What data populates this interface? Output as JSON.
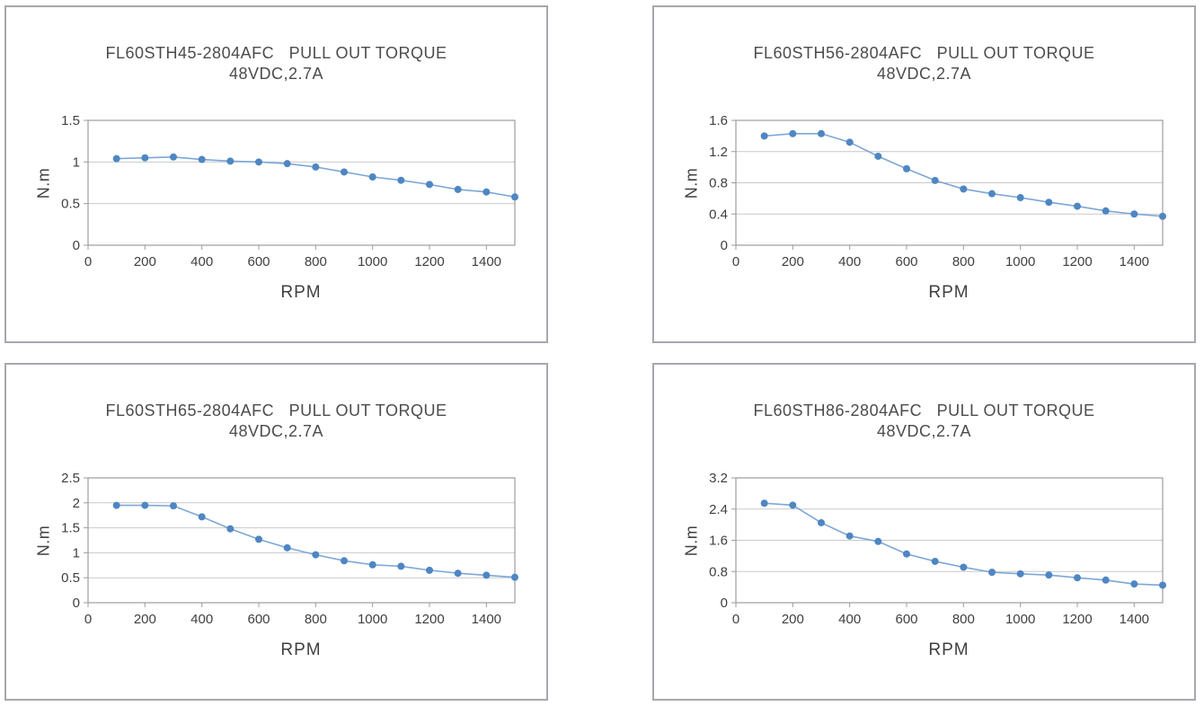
{
  "style": {
    "panel_border_color": "#a7a7ad",
    "grid_color": "#c9c9c9",
    "axis_color": "#9c9c9c",
    "tick_text_color": "#3f3f3f",
    "title_color": "#4c4c4c",
    "marker_color": "#4f86c2",
    "line_color": "#7ca7d6"
  },
  "chart_data": [
    {
      "type": "line",
      "title": "FL60STH45-2804AFC   PULL OUT TORQUE",
      "subtitle": "48VDC,2.7A",
      "ylabel": "N.m",
      "xlabel": "RPM",
      "x": [
        100,
        200,
        300,
        400,
        500,
        600,
        700,
        800,
        900,
        1000,
        1100,
        1200,
        1300,
        1400,
        1500
      ],
      "values": [
        1.04,
        1.05,
        1.06,
        1.03,
        1.01,
        1.0,
        0.98,
        0.94,
        0.88,
        0.82,
        0.78,
        0.73,
        0.67,
        0.64,
        0.58
      ],
      "xlim": [
        0,
        1500
      ],
      "ylim": [
        0,
        1.5
      ],
      "ytick_values": [
        0,
        0.5,
        1,
        1.5
      ],
      "ytick_labels": [
        "0",
        "0.5",
        "1",
        "1.5"
      ],
      "xtick_values": [
        0,
        200,
        400,
        600,
        800,
        1000,
        1200,
        1400
      ],
      "xtick_labels": [
        "0",
        "200",
        "400",
        "600",
        "800",
        "1000",
        "1200",
        "1400"
      ],
      "grid": true,
      "legend": "none"
    },
    {
      "type": "line",
      "title": "FL60STH56-2804AFC   PULL OUT TORQUE",
      "subtitle": "48VDC,2.7A",
      "ylabel": "N.m",
      "xlabel": "RPM",
      "x": [
        100,
        200,
        300,
        400,
        500,
        600,
        700,
        800,
        900,
        1000,
        1100,
        1200,
        1300,
        1400,
        1500
      ],
      "values": [
        1.4,
        1.43,
        1.43,
        1.32,
        1.14,
        0.98,
        0.83,
        0.72,
        0.66,
        0.61,
        0.55,
        0.5,
        0.44,
        0.4,
        0.37
      ],
      "xlim": [
        0,
        1500
      ],
      "ylim": [
        0,
        1.6
      ],
      "ytick_values": [
        0,
        0.4,
        0.8,
        1.2,
        1.6
      ],
      "ytick_labels": [
        "0",
        "0.4",
        "0.8",
        "1.2",
        "1.6"
      ],
      "xtick_values": [
        0,
        200,
        400,
        600,
        800,
        1000,
        1200,
        1400
      ],
      "xtick_labels": [
        "0",
        "200",
        "400",
        "600",
        "800",
        "1000",
        "1200",
        "1400"
      ],
      "grid": true,
      "legend": "none"
    },
    {
      "type": "line",
      "title": "FL60STH65-2804AFC   PULL OUT TORQUE",
      "subtitle": "48VDC,2.7A",
      "ylabel": "N.m",
      "xlabel": "RPM",
      "x": [
        100,
        200,
        300,
        400,
        500,
        600,
        700,
        800,
        900,
        1000,
        1100,
        1200,
        1300,
        1400,
        1500
      ],
      "values": [
        1.95,
        1.95,
        1.94,
        1.72,
        1.48,
        1.27,
        1.1,
        0.96,
        0.84,
        0.76,
        0.73,
        0.65,
        0.59,
        0.55,
        0.51
      ],
      "xlim": [
        0,
        1500
      ],
      "ylim": [
        0,
        2.5
      ],
      "ytick_values": [
        0,
        0.5,
        1,
        1.5,
        2,
        2.5
      ],
      "ytick_labels": [
        "0",
        "0.5",
        "1",
        "1.5",
        "2",
        "2.5"
      ],
      "xtick_values": [
        0,
        200,
        400,
        600,
        800,
        1000,
        1200,
        1400
      ],
      "xtick_labels": [
        "0",
        "200",
        "400",
        "600",
        "800",
        "1000",
        "1200",
        "1400"
      ],
      "grid": true,
      "legend": "none"
    },
    {
      "type": "line",
      "title": "FL60STH86-2804AFC   PULL OUT TORQUE",
      "subtitle": "48VDC,2.7A",
      "ylabel": "N.m",
      "xlabel": "RPM",
      "x": [
        100,
        200,
        300,
        400,
        500,
        600,
        700,
        800,
        900,
        1000,
        1100,
        1200,
        1300,
        1400,
        1500
      ],
      "values": [
        2.55,
        2.5,
        2.05,
        1.71,
        1.57,
        1.25,
        1.06,
        0.91,
        0.78,
        0.74,
        0.71,
        0.64,
        0.58,
        0.48,
        0.45
      ],
      "xlim": [
        0,
        1500
      ],
      "ylim": [
        0,
        3.2
      ],
      "ytick_values": [
        0,
        0.8,
        1.6,
        2.4,
        3.2
      ],
      "ytick_labels": [
        "0",
        "0.8",
        "1.6",
        "2.4",
        "3.2"
      ],
      "xtick_values": [
        0,
        200,
        400,
        600,
        800,
        1000,
        1200,
        1400
      ],
      "xtick_labels": [
        "0",
        "200",
        "400",
        "600",
        "800",
        "1000",
        "1200",
        "1400"
      ],
      "grid": true,
      "legend": "none"
    }
  ]
}
